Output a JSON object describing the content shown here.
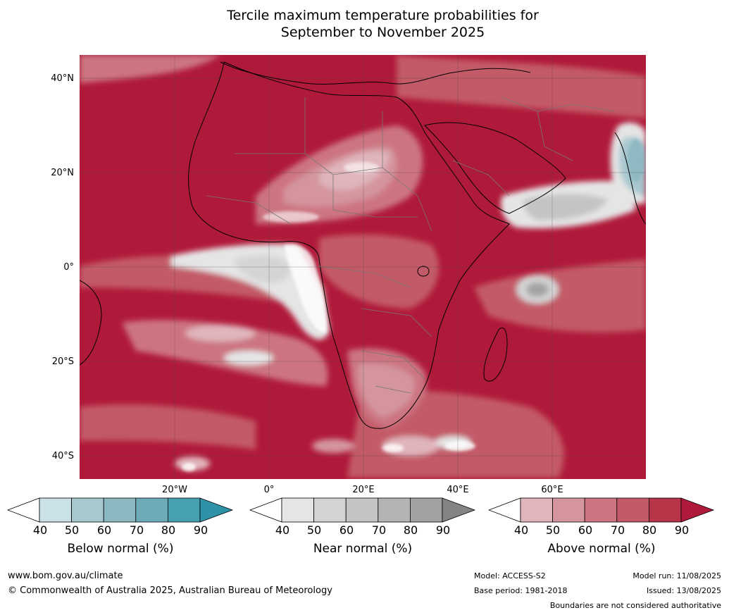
{
  "title": {
    "line1": "Tercile maximum temperature probabilities for",
    "line2": "September to November 2025"
  },
  "map": {
    "lat_labels": [
      "40°N",
      "20°N",
      "0°",
      "20°S",
      "40°S"
    ],
    "lat_values": [
      40,
      20,
      0,
      -20,
      -40
    ],
    "lon_labels": [
      "20°W",
      "0°",
      "20°E",
      "40°E",
      "60°E"
    ],
    "lon_values": [
      -20,
      0,
      20,
      40,
      60
    ],
    "extent": {
      "lon_min": -40,
      "lon_max": 80,
      "lat_min": -45,
      "lat_max": 45
    }
  },
  "legend": {
    "ticks": [
      "40",
      "50",
      "60",
      "70",
      "80",
      "90"
    ],
    "below": {
      "label": "Below normal (%)",
      "colors": [
        "#ffffff",
        "#c9e1e7",
        "#a8c8cf",
        "#8bb7c1",
        "#6dabb9",
        "#46a0b1",
        "#2f93a8"
      ]
    },
    "near": {
      "label": "Near normal (%)",
      "colors": [
        "#ffffff",
        "#e5e5e5",
        "#d4d4d4",
        "#c4c4c4",
        "#b4b4b4",
        "#a2a2a2",
        "#848484"
      ]
    },
    "above": {
      "label": "Above normal (%)",
      "colors": [
        "#ffffff",
        "#e0b5bc",
        "#d4959e",
        "#cc7580",
        "#c35a68",
        "#b83448",
        "#b01a3a"
      ]
    }
  },
  "footer": {
    "website": "www.bom.gov.au/climate",
    "copyright": "© Commonwealth of Australia 2025, Australian Bureau of Meteorology",
    "model": "Model: ACCESS-S2",
    "base_period": "Base period: 1981-2018",
    "model_run": "Model run: 11/08/2025",
    "issued": "Issued: 13/08/2025",
    "disclaimer": "Boundaries are not considered authoritative"
  }
}
